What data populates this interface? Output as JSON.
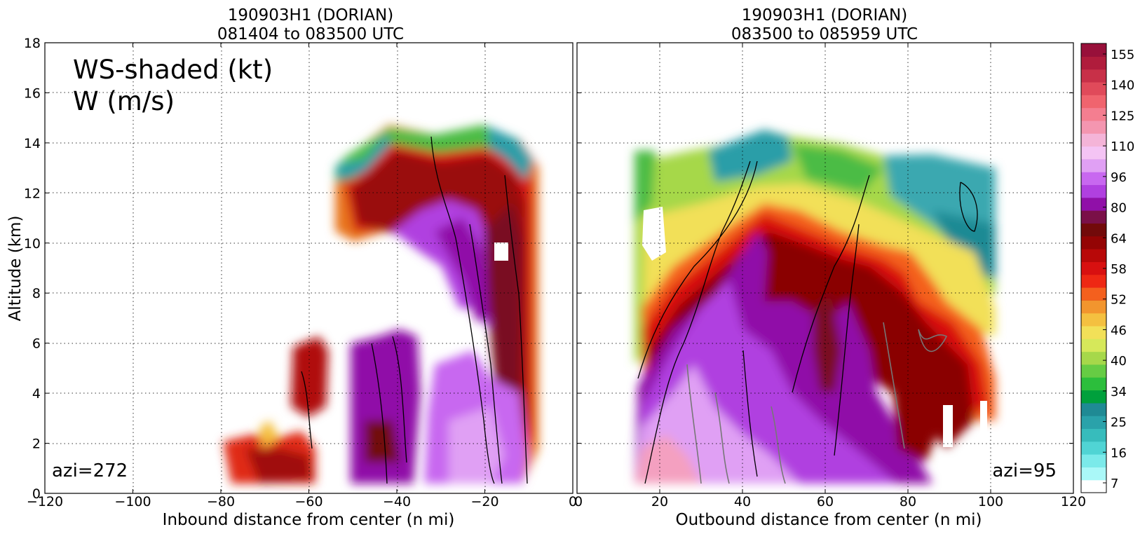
{
  "chart_data": [
    {
      "type": "heatmap",
      "title_line1": "190903H1 (DORIAN)",
      "title_line2": "081404 to 083500 UTC",
      "xlabel": "Inbound distance from center (n mi)",
      "ylabel": "Altitude (km)",
      "xlim": [
        -120,
        0
      ],
      "ylim": [
        0,
        18
      ],
      "xticks": [
        -120,
        -100,
        -80,
        -60,
        -40,
        -20,
        0
      ],
      "yticks": [
        0,
        2,
        4,
        6,
        8,
        10,
        12,
        14,
        16,
        18
      ],
      "grid": true,
      "annotation_line1": "WS-shaded (kt)",
      "annotation_line2": "W (m/s)",
      "azimuth_label": "azi=272"
    },
    {
      "type": "heatmap",
      "title_line1": "190903H1 (DORIAN)",
      "title_line2": "083500 to 085959 UTC",
      "xlabel": "Outbound distance from center (n mi)",
      "xlim": [
        0,
        120
      ],
      "ylim": [
        0,
        18
      ],
      "xticks": [
        0,
        20,
        40,
        60,
        80,
        100,
        120
      ],
      "grid": true,
      "azimuth_label": "azi=95"
    }
  ],
  "colorbar": {
    "tick_labels": [
      "7",
      "16",
      "25",
      "34",
      "40",
      "46",
      "52",
      "58",
      "64",
      "80",
      "96",
      "110",
      "125",
      "140",
      "155"
    ],
    "colors": [
      "#ffffff",
      "#aaf8f8",
      "#7beaea",
      "#50d4d4",
      "#37bcbc",
      "#2aa2aa",
      "#1f8a94",
      "#00a03c",
      "#2cbe3c",
      "#66cc44",
      "#a6d84a",
      "#d6e85a",
      "#f2e058",
      "#f4c040",
      "#f2952e",
      "#f4601e",
      "#ee2814",
      "#d81010",
      "#b80808",
      "#940404",
      "#720a0a",
      "#7a1048",
      "#9010a8",
      "#b040e0",
      "#c868f0",
      "#e0a0f4",
      "#f4c4f4",
      "#f4b4d8",
      "#f496b0",
      "#f47e90",
      "#f0646e",
      "#e04a5a",
      "#c83048",
      "#b01c3c",
      "#98103a"
    ]
  }
}
